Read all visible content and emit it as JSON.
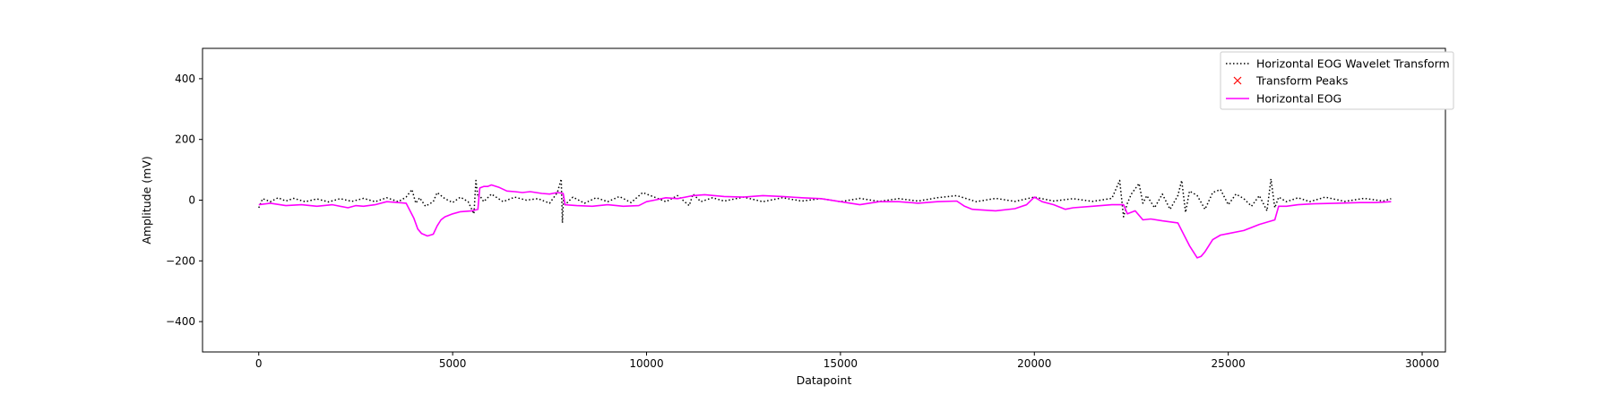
{
  "chart_data": {
    "type": "line",
    "title": "",
    "xlabel": "Datapoint",
    "ylabel": "Amplitude (mV)",
    "xlim": [
      -1450,
      30600
    ],
    "ylim": [
      -500,
      500
    ],
    "xticks": [
      0,
      5000,
      10000,
      15000,
      20000,
      25000,
      30000
    ],
    "yticks": [
      -400,
      -200,
      0,
      200,
      400
    ],
    "xtick_labels": [
      "0",
      "5000",
      "10000",
      "15000",
      "20000",
      "25000",
      "30000"
    ],
    "ytick_labels": [
      "−400",
      "−200",
      "0",
      "200",
      "400"
    ],
    "grid": false,
    "legend_position": "top-right",
    "series": [
      {
        "name": "Horizontal EOG Wavelet Transform",
        "style": "dotted",
        "color": "#000000",
        "x": [
          0,
          100,
          300,
          500,
          700,
          900,
          1200,
          1500,
          1800,
          2100,
          2400,
          2700,
          3000,
          3300,
          3600,
          3800,
          3950,
          4050,
          4150,
          4300,
          4500,
          4600,
          4800,
          5000,
          5200,
          5400,
          5550,
          5600,
          5650,
          5700,
          5800,
          6000,
          6300,
          6600,
          6900,
          7200,
          7500,
          7700,
          7800,
          7830,
          7860,
          7900,
          8100,
          8400,
          8700,
          9000,
          9300,
          9600,
          9900,
          10200,
          10500,
          10800,
          11100,
          11200,
          11400,
          11700,
          12000,
          12500,
          13000,
          13500,
          14000,
          14500,
          15000,
          15500,
          16000,
          16500,
          17000,
          17500,
          18000,
          18500,
          19000,
          19500,
          20000,
          20500,
          21000,
          21500,
          22000,
          22200,
          22300,
          22400,
          22500,
          22700,
          22800,
          22900,
          23100,
          23300,
          23500,
          23700,
          23800,
          23900,
          24000,
          24200,
          24400,
          24600,
          24800,
          25000,
          25200,
          25400,
          25600,
          25800,
          26000,
          26100,
          26200,
          26300,
          26500,
          26800,
          27100,
          27500,
          28000,
          28500,
          29000,
          29200
        ],
        "y": [
          -25,
          5,
          -5,
          8,
          -3,
          6,
          -5,
          4,
          -6,
          5,
          -4,
          6,
          -5,
          8,
          -5,
          10,
          35,
          -10,
          8,
          -20,
          -5,
          25,
          5,
          -8,
          10,
          -5,
          -45,
          65,
          10,
          15,
          -5,
          20,
          -5,
          10,
          0,
          5,
          -10,
          25,
          70,
          -75,
          10,
          -15,
          10,
          -10,
          8,
          -5,
          12,
          -8,
          25,
          10,
          -5,
          15,
          -18,
          20,
          -5,
          8,
          -3,
          10,
          -5,
          8,
          -3,
          5,
          -5,
          6,
          -4,
          5,
          -3,
          8,
          15,
          -5,
          6,
          -4,
          10,
          -3,
          5,
          -4,
          6,
          65,
          -55,
          -10,
          20,
          55,
          -10,
          15,
          -25,
          20,
          -30,
          15,
          65,
          -40,
          30,
          15,
          -30,
          25,
          35,
          -15,
          20,
          5,
          -20,
          15,
          -35,
          70,
          -25,
          10,
          -5,
          8,
          -5,
          10,
          -4,
          6,
          -3,
          5
        ]
      },
      {
        "name": "Transform Peaks",
        "style": "marker-x",
        "color": "#ff0000",
        "x": [],
        "y": []
      },
      {
        "name": "Horizontal EOG",
        "style": "solid",
        "color": "#ff00ff",
        "x": [
          0,
          300,
          700,
          1100,
          1500,
          1900,
          2300,
          2500,
          2700,
          3000,
          3300,
          3600,
          3800,
          4000,
          4100,
          4200,
          4350,
          4500,
          4600,
          4700,
          4800,
          5000,
          5200,
          5500,
          5650,
          5700,
          5800,
          5900,
          6000,
          6200,
          6400,
          6600,
          6800,
          7000,
          7300,
          7500,
          7700,
          7850,
          7900,
          8200,
          8600,
          9000,
          9400,
          9800,
          10000,
          10200,
          10500,
          10800,
          11200,
          11500,
          12000,
          12500,
          13000,
          13500,
          14000,
          14500,
          15000,
          15500,
          16000,
          16500,
          17000,
          17500,
          18000,
          18200,
          18400,
          18600,
          19000,
          19500,
          19800,
          20000,
          20200,
          20500,
          20800,
          21000,
          21500,
          22000,
          22300,
          22400,
          22600,
          22800,
          23000,
          23300,
          23700,
          23800,
          24000,
          24200,
          24300,
          24400,
          24600,
          24800,
          25000,
          25400,
          25800,
          26200,
          26300,
          26500,
          26800,
          27200,
          27800,
          28400,
          28800,
          29200
        ],
        "y": [
          -15,
          -10,
          -18,
          -15,
          -20,
          -15,
          -25,
          -18,
          -20,
          -15,
          -5,
          -8,
          -10,
          -60,
          -95,
          -110,
          -118,
          -112,
          -85,
          -65,
          -55,
          -45,
          -38,
          -35,
          -30,
          40,
          45,
          45,
          50,
          42,
          30,
          28,
          25,
          28,
          22,
          20,
          25,
          22,
          -15,
          -18,
          -20,
          -15,
          -20,
          -18,
          -5,
          0,
          8,
          5,
          15,
          18,
          12,
          10,
          15,
          12,
          8,
          5,
          -5,
          -15,
          -5,
          -5,
          -10,
          -5,
          -3,
          -20,
          -30,
          -32,
          -35,
          -28,
          -15,
          10,
          -5,
          -15,
          -30,
          -25,
          -20,
          -15,
          -15,
          -45,
          -35,
          -65,
          -62,
          -68,
          -75,
          -100,
          -150,
          -190,
          -185,
          -170,
          -130,
          -115,
          -110,
          -100,
          -80,
          -65,
          -20,
          -20,
          -15,
          -12,
          -10,
          -8,
          -8,
          -5
        ]
      }
    ]
  }
}
